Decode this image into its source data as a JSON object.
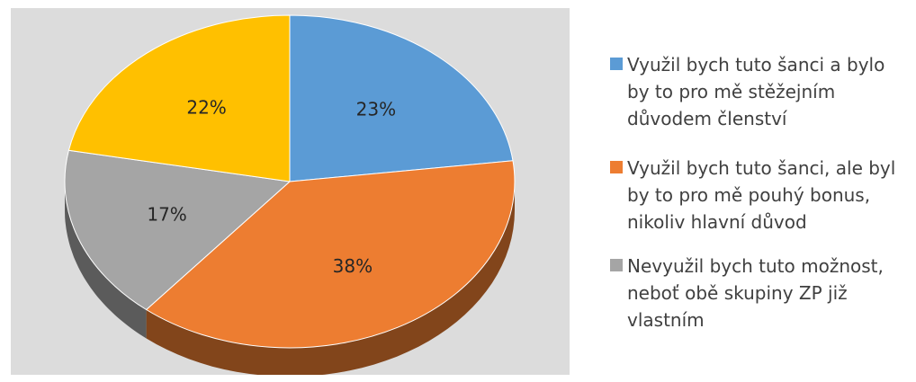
{
  "chart_data": {
    "type": "pie",
    "title": "",
    "slices": [
      {
        "label": "Využil bych tuto šanci a bylo by to pro mě stěžejním důvodem členství",
        "value": 23,
        "value_label": "23%",
        "color": "#5b9bd5"
      },
      {
        "label": "Využil bych tuto šanci, ale byl by to pro mě pouhý bonus, nikoliv hlavní důvod",
        "value": 38,
        "value_label": "38%",
        "color": "#ed7d31"
      },
      {
        "label": "Nevyužil bych tuto možnost, neboť obě skupiny ZP již vlastním",
        "value": 17,
        "value_label": "17%",
        "color": "#a5a5a5"
      },
      {
        "label": "",
        "value": 22,
        "value_label": "22%",
        "color": "#ffc000"
      }
    ],
    "legend_position": "right",
    "style": "3d"
  }
}
